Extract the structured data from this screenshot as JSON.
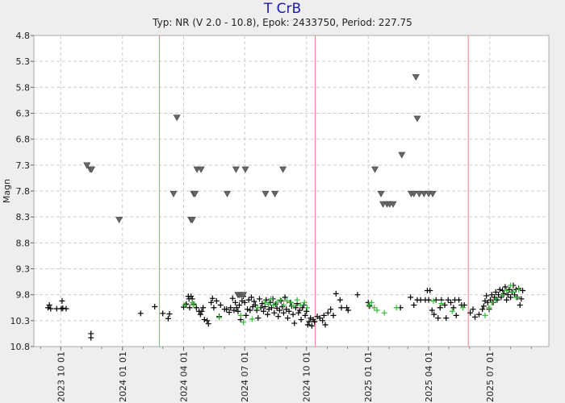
{
  "chart_data": {
    "type": "scatter",
    "title": "T CrB",
    "subtitle": "Typ: NR (V 2.0 - 10.8), Epok: 2433750, Period: 227.75",
    "ylabel": "Magn",
    "xlabel": "",
    "ylim": [
      4.8,
      10.8
    ],
    "y_inverted": true,
    "y_ticks": [
      "4.8",
      "5.3",
      "5.8",
      "6.3",
      "6.8",
      "7.3",
      "7.8",
      "8.3",
      "8.8",
      "9.3",
      "9.8",
      "10.3",
      "10.8"
    ],
    "x_range": [
      "2023-08-22",
      "2025-09-27"
    ],
    "x_ticks": [
      "2023 10 01",
      "2024 01 01",
      "2024 04 01",
      "2024 07 01",
      "2024 10 01",
      "2025 01 01",
      "2025 04 01",
      "2025 07 01"
    ],
    "minor_x_ticks": [
      "2023-09-01",
      "2023-11-01",
      "2023-12-01",
      "2024-02-01",
      "2024-03-01",
      "2024-05-01",
      "2024-06-01",
      "2024-08-01",
      "2024-09-01",
      "2024-11-01",
      "2024-12-01",
      "2025-02-01",
      "2025-03-01",
      "2025-05-01",
      "2025-06-01",
      "2025-08-01",
      "2025-09-01"
    ],
    "max_dates": [
      "2024-02-25",
      "2024-10-14",
      "2025-05-30"
    ],
    "grid": true,
    "colors": {
      "visual": "#000000",
      "v_filter": "#33bb33",
      "fainter_than": "#666666",
      "max_line": "#ff8080",
      "grid": "#cccccc",
      "title": "#1a1aa6"
    },
    "series": [
      {
        "marker": "plus",
        "color": "#000000",
        "points": [
          [
            "2023-09-12",
            10.05
          ],
          [
            "2023-09-14",
            10.0
          ],
          [
            "2023-09-16",
            10.07
          ],
          [
            "2023-09-25",
            10.07
          ],
          [
            "2023-10-02",
            10.07
          ],
          [
            "2023-10-03",
            9.92
          ],
          [
            "2023-10-04",
            10.06
          ],
          [
            "2023-10-09",
            10.07
          ],
          [
            "2023-11-15",
            10.55
          ],
          [
            "2023-11-15",
            10.63
          ],
          [
            "2024-01-28",
            10.16
          ],
          [
            "2024-02-18",
            10.03
          ],
          [
            "2024-03-01",
            10.16
          ],
          [
            "2024-03-09",
            10.26
          ],
          [
            "2024-03-11",
            10.17
          ],
          [
            "2024-04-01",
            10.04
          ],
          [
            "2024-04-05",
            9.98
          ],
          [
            "2024-04-08",
            9.83
          ],
          [
            "2024-04-09",
            9.88
          ],
          [
            "2024-04-10",
            10.05
          ],
          [
            "2024-04-12",
            9.83
          ],
          [
            "2024-04-14",
            9.88
          ],
          [
            "2024-04-16",
            9.98
          ],
          [
            "2024-04-20",
            10.05
          ],
          [
            "2024-04-24",
            10.12
          ],
          [
            "2024-04-26",
            10.18
          ],
          [
            "2024-04-28",
            10.12
          ],
          [
            "2024-04-30",
            10.05
          ],
          [
            "2024-05-02",
            10.28
          ],
          [
            "2024-05-06",
            10.3
          ],
          [
            "2024-05-08",
            10.36
          ],
          [
            "2024-05-12",
            9.95
          ],
          [
            "2024-05-14",
            9.87
          ],
          [
            "2024-05-16",
            10.05
          ],
          [
            "2024-05-20",
            9.92
          ],
          [
            "2024-05-24",
            10.22
          ],
          [
            "2024-05-26",
            10.0
          ],
          [
            "2024-06-01",
            10.08
          ],
          [
            "2024-06-04",
            10.08
          ],
          [
            "2024-06-08",
            10.14
          ],
          [
            "2024-06-10",
            10.05
          ],
          [
            "2024-06-13",
            9.87
          ],
          [
            "2024-06-15",
            10.1
          ],
          [
            "2024-06-17",
            9.95
          ],
          [
            "2024-06-19",
            10.05
          ],
          [
            "2024-06-21",
            10.12
          ],
          [
            "2024-06-23",
            10.0
          ],
          [
            "2024-06-25",
            10.28
          ],
          [
            "2024-06-27",
            9.92
          ],
          [
            "2024-06-29",
            9.83
          ],
          [
            "2024-07-01",
            9.95
          ],
          [
            "2024-07-03",
            10.2
          ],
          [
            "2024-07-05",
            10.08
          ],
          [
            "2024-07-07",
            9.9
          ],
          [
            "2024-07-09",
            10.1
          ],
          [
            "2024-07-11",
            9.85
          ],
          [
            "2024-07-13",
            10.03
          ],
          [
            "2024-07-15",
            9.93
          ],
          [
            "2024-07-17",
            10.0
          ],
          [
            "2024-07-19",
            10.1
          ],
          [
            "2024-07-21",
            10.25
          ],
          [
            "2024-07-23",
            9.88
          ],
          [
            "2024-07-25",
            10.05
          ],
          [
            "2024-07-27",
            9.97
          ],
          [
            "2024-07-29",
            10.12
          ],
          [
            "2024-07-31",
            10.03
          ],
          [
            "2024-08-02",
            9.9
          ],
          [
            "2024-08-04",
            10.18
          ],
          [
            "2024-08-06",
            10.08
          ],
          [
            "2024-08-08",
            9.95
          ],
          [
            "2024-08-10",
            10.05
          ],
          [
            "2024-08-12",
            9.88
          ],
          [
            "2024-08-14",
            10.15
          ],
          [
            "2024-08-16",
            9.98
          ],
          [
            "2024-08-18",
            10.06
          ],
          [
            "2024-08-20",
            10.22
          ],
          [
            "2024-08-22",
            10.1
          ],
          [
            "2024-08-24",
            9.92
          ],
          [
            "2024-08-26",
            10.03
          ],
          [
            "2024-08-28",
            10.15
          ],
          [
            "2024-08-30",
            9.85
          ],
          [
            "2024-09-01",
            10.08
          ],
          [
            "2024-09-03",
            10.25
          ],
          [
            "2024-09-05",
            10.12
          ],
          [
            "2024-09-07",
            9.95
          ],
          [
            "2024-09-09",
            10.02
          ],
          [
            "2024-09-11",
            10.18
          ],
          [
            "2024-09-13",
            10.35
          ],
          [
            "2024-09-15",
            10.05
          ],
          [
            "2024-09-17",
            9.97
          ],
          [
            "2024-09-19",
            10.15
          ],
          [
            "2024-09-21",
            10.1
          ],
          [
            "2024-09-23",
            10.28
          ],
          [
            "2024-09-25",
            10.05
          ],
          [
            "2024-09-27",
            10.0
          ],
          [
            "2024-09-29",
            10.2
          ],
          [
            "2024-10-01",
            10.12
          ],
          [
            "2024-10-03",
            10.38
          ],
          [
            "2024-10-05",
            10.32
          ],
          [
            "2024-10-07",
            10.25
          ],
          [
            "2024-10-09",
            10.4
          ],
          [
            "2024-10-11",
            10.28
          ],
          [
            "2024-10-13",
            10.32
          ],
          [
            "2024-10-17",
            10.22
          ],
          [
            "2024-10-21",
            10.25
          ],
          [
            "2024-10-25",
            10.3
          ],
          [
            "2024-10-27",
            10.2
          ],
          [
            "2024-10-29",
            10.38
          ],
          [
            "2024-11-02",
            10.15
          ],
          [
            "2024-11-06",
            10.08
          ],
          [
            "2024-11-10",
            10.2
          ],
          [
            "2024-11-14",
            9.78
          ],
          [
            "2024-11-20",
            9.9
          ],
          [
            "2024-11-22",
            10.05
          ],
          [
            "2024-11-30",
            10.05
          ],
          [
            "2024-12-02",
            10.1
          ],
          [
            "2024-12-16",
            9.8
          ],
          [
            "2025-01-01",
            9.95
          ],
          [
            "2025-01-03",
            10.02
          ],
          [
            "2025-02-18",
            10.05
          ],
          [
            "2025-03-05",
            9.85
          ],
          [
            "2025-03-10",
            10.0
          ],
          [
            "2025-03-15",
            9.9
          ],
          [
            "2025-03-20",
            9.9
          ],
          [
            "2025-03-27",
            9.9
          ],
          [
            "2025-03-30",
            9.72
          ],
          [
            "2025-04-01",
            9.9
          ],
          [
            "2025-04-03",
            9.72
          ],
          [
            "2025-04-06",
            10.1
          ],
          [
            "2025-04-09",
            10.18
          ],
          [
            "2025-04-12",
            9.9
          ],
          [
            "2025-04-15",
            10.25
          ],
          [
            "2025-04-18",
            10.05
          ],
          [
            "2025-04-20",
            9.9
          ],
          [
            "2025-04-25",
            10.0
          ],
          [
            "2025-04-27",
            10.25
          ],
          [
            "2025-04-30",
            9.9
          ],
          [
            "2025-05-04",
            9.95
          ],
          [
            "2025-05-08",
            10.05
          ],
          [
            "2025-05-10",
            9.9
          ],
          [
            "2025-05-12",
            10.2
          ],
          [
            "2025-05-16",
            9.9
          ],
          [
            "2025-05-20",
            10.0
          ],
          [
            "2025-05-24",
            10.0
          ],
          [
            "2025-06-02",
            10.15
          ],
          [
            "2025-06-06",
            10.08
          ],
          [
            "2025-06-09",
            10.23
          ],
          [
            "2025-06-15",
            10.18
          ],
          [
            "2025-06-20",
            10.08
          ],
          [
            "2025-06-22",
            10.02
          ],
          [
            "2025-06-24",
            9.92
          ],
          [
            "2025-06-26",
            9.82
          ],
          [
            "2025-06-28",
            9.95
          ],
          [
            "2025-06-30",
            10.08
          ],
          [
            "2025-07-02",
            9.9
          ],
          [
            "2025-07-04",
            9.8
          ],
          [
            "2025-07-06",
            9.95
          ],
          [
            "2025-07-08",
            9.85
          ],
          [
            "2025-07-10",
            9.75
          ],
          [
            "2025-07-12",
            9.9
          ],
          [
            "2025-07-14",
            9.8
          ],
          [
            "2025-07-16",
            9.7
          ],
          [
            "2025-07-18",
            9.85
          ],
          [
            "2025-07-20",
            9.72
          ],
          [
            "2025-07-22",
            9.78
          ],
          [
            "2025-07-24",
            9.65
          ],
          [
            "2025-07-26",
            9.9
          ],
          [
            "2025-07-28",
            9.8
          ],
          [
            "2025-07-30",
            9.7
          ],
          [
            "2025-08-01",
            9.85
          ],
          [
            "2025-08-03",
            9.75
          ],
          [
            "2025-08-05",
            9.62
          ],
          [
            "2025-08-07",
            9.8
          ],
          [
            "2025-08-09",
            9.7
          ],
          [
            "2025-08-11",
            9.85
          ],
          [
            "2025-08-13",
            9.68
          ],
          [
            "2025-08-15",
            10.0
          ],
          [
            "2025-08-17",
            9.88
          ],
          [
            "2025-08-19",
            9.72
          ]
        ]
      },
      {
        "marker": "plus",
        "color": "#33bb33",
        "points": [
          [
            "2024-04-03",
            10.0
          ],
          [
            "2024-04-14",
            9.95
          ],
          [
            "2024-04-16",
            10.0
          ],
          [
            "2024-05-24",
            10.24
          ],
          [
            "2024-06-25",
            10.2
          ],
          [
            "2024-06-29",
            10.33
          ],
          [
            "2024-07-12",
            10.27
          ],
          [
            "2024-07-20",
            10.05
          ],
          [
            "2024-07-31",
            9.95
          ],
          [
            "2024-08-05",
            9.98
          ],
          [
            "2024-08-09",
            9.88
          ],
          [
            "2024-08-13",
            10.0
          ],
          [
            "2024-08-18",
            9.95
          ],
          [
            "2024-08-23",
            9.9
          ],
          [
            "2024-08-28",
            10.0
          ],
          [
            "2024-09-02",
            9.92
          ],
          [
            "2024-09-08",
            9.95
          ],
          [
            "2024-09-12",
            10.02
          ],
          [
            "2024-09-17",
            9.9
          ],
          [
            "2024-09-22",
            10.0
          ],
          [
            "2024-09-28",
            9.95
          ],
          [
            "2024-10-02",
            10.05
          ],
          [
            "2025-01-02",
            10.0
          ],
          [
            "2025-01-06",
            9.95
          ],
          [
            "2025-01-10",
            10.05
          ],
          [
            "2025-01-14",
            10.1
          ],
          [
            "2025-01-25",
            10.15
          ],
          [
            "2025-02-12",
            10.05
          ],
          [
            "2025-04-08",
            9.92
          ],
          [
            "2025-04-20",
            9.97
          ],
          [
            "2025-05-06",
            10.12
          ],
          [
            "2025-05-22",
            10.05
          ],
          [
            "2025-06-24",
            10.2
          ],
          [
            "2025-06-30",
            10.05
          ],
          [
            "2025-07-04",
            9.95
          ],
          [
            "2025-07-10",
            9.88
          ],
          [
            "2025-07-20",
            9.8
          ],
          [
            "2025-07-26",
            9.72
          ],
          [
            "2025-08-01",
            9.62
          ],
          [
            "2025-08-05",
            9.75
          ],
          [
            "2025-08-09",
            9.85
          ],
          [
            "2025-08-13",
            9.7
          ]
        ]
      },
      {
        "marker": "triangle-down",
        "color": "#666666",
        "points": [
          [
            "2023-11-09",
            7.3
          ],
          [
            "2023-11-14",
            7.38
          ],
          [
            "2023-11-16",
            7.38
          ],
          [
            "2023-12-27",
            8.35
          ],
          [
            "2024-03-17",
            7.85
          ],
          [
            "2024-03-22",
            6.38
          ],
          [
            "2024-04-12",
            8.35
          ],
          [
            "2024-04-14",
            8.35
          ],
          [
            "2024-04-16",
            7.85
          ],
          [
            "2024-04-18",
            7.85
          ],
          [
            "2024-04-21",
            7.38
          ],
          [
            "2024-04-27",
            7.38
          ],
          [
            "2024-06-05",
            7.85
          ],
          [
            "2024-06-18",
            7.38
          ],
          [
            "2024-06-21",
            9.8
          ],
          [
            "2024-06-23",
            9.8
          ],
          [
            "2024-06-26",
            9.8
          ],
          [
            "2024-06-29",
            9.8
          ],
          [
            "2024-07-02",
            7.38
          ],
          [
            "2024-08-01",
            7.85
          ],
          [
            "2024-08-15",
            7.85
          ],
          [
            "2024-08-27",
            7.38
          ],
          [
            "2025-01-11",
            7.38
          ],
          [
            "2025-01-20",
            7.85
          ],
          [
            "2025-01-23",
            8.05
          ],
          [
            "2025-01-29",
            8.05
          ],
          [
            "2025-02-02",
            8.05
          ],
          [
            "2025-02-07",
            8.05
          ],
          [
            "2025-02-20",
            7.1
          ],
          [
            "2025-03-06",
            7.85
          ],
          [
            "2025-03-10",
            7.85
          ],
          [
            "2025-03-13",
            5.6
          ],
          [
            "2025-03-15",
            6.4
          ],
          [
            "2025-03-18",
            7.85
          ],
          [
            "2025-03-25",
            7.85
          ],
          [
            "2025-04-01",
            7.85
          ],
          [
            "2025-04-07",
            7.85
          ]
        ]
      }
    ]
  }
}
